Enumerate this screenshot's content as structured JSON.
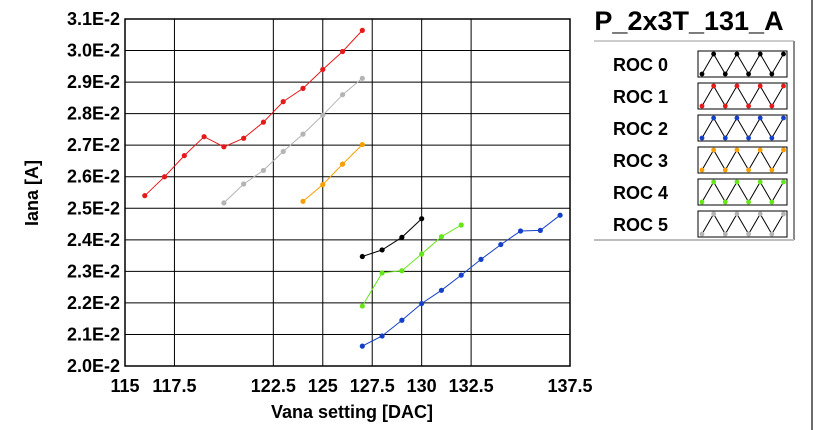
{
  "chart_data": {
    "type": "scatter",
    "title": "P_2x3T_131_A",
    "xlabel": "Vana setting [DAC]",
    "ylabel": "Iana [A]",
    "xlim": [
      115,
      137.5
    ],
    "ylim": [
      0.02,
      0.031
    ],
    "x_ticks": [
      115,
      117.5,
      122.5,
      125,
      127.5,
      130,
      132.5,
      137.5
    ],
    "x_tick_labels": [
      "115",
      "117.5",
      "122.5",
      "125",
      "127.5",
      "130",
      "132.5",
      "137.5"
    ],
    "y_ticks": [
      0.02,
      0.021,
      0.022,
      0.023,
      0.024,
      0.025,
      0.026,
      0.027,
      0.028,
      0.029,
      0.03,
      0.031
    ],
    "y_tick_labels": [
      "2.0E-2",
      "2.1E-2",
      "2.2E-2",
      "2.3E-2",
      "2.4E-2",
      "2.5E-2",
      "2.6E-2",
      "2.7E-2",
      "2.8E-2",
      "2.9E-2",
      "3.0E-2",
      "3.1E-2"
    ],
    "grid": true,
    "legend_position": "right",
    "series": [
      {
        "name": "ROC 0",
        "color": "#000000",
        "x": [
          127,
          128,
          129,
          130
        ],
        "y": [
          0.02347,
          0.02368,
          0.02408,
          0.02467
        ]
      },
      {
        "name": "ROC 1",
        "color": "#e61919",
        "x": [
          116,
          117,
          118,
          119,
          120,
          121,
          122,
          123,
          124,
          125,
          126,
          127
        ],
        "y": [
          0.0254,
          0.026,
          0.02667,
          0.02727,
          0.02695,
          0.02722,
          0.02773,
          0.02838,
          0.0288,
          0.0294,
          0.02997,
          0.03064
        ]
      },
      {
        "name": "ROC 2",
        "color": "#1440c8",
        "x": [
          127,
          128,
          129,
          130,
          131,
          132,
          133,
          134,
          135,
          136,
          137
        ],
        "y": [
          0.02063,
          0.02095,
          0.02145,
          0.02198,
          0.0224,
          0.02288,
          0.02338,
          0.02385,
          0.02428,
          0.0243,
          0.02478
        ]
      },
      {
        "name": "ROC 3",
        "color": "#f5a000",
        "x": [
          124,
          125,
          126,
          127
        ],
        "y": [
          0.02522,
          0.02575,
          0.0264,
          0.02702
        ]
      },
      {
        "name": "ROC 4",
        "color": "#66e619",
        "x": [
          127,
          128,
          129,
          130,
          131,
          132
        ],
        "y": [
          0.0219,
          0.02295,
          0.02302,
          0.02355,
          0.0241,
          0.02447
        ]
      },
      {
        "name": "ROC 5",
        "color": "#b4b4b4",
        "x": [
          120,
          121,
          122,
          123,
          124,
          125,
          126,
          127
        ],
        "y": [
          0.02517,
          0.02577,
          0.0262,
          0.0268,
          0.02735,
          0.02795,
          0.0286,
          0.02912
        ]
      }
    ]
  }
}
